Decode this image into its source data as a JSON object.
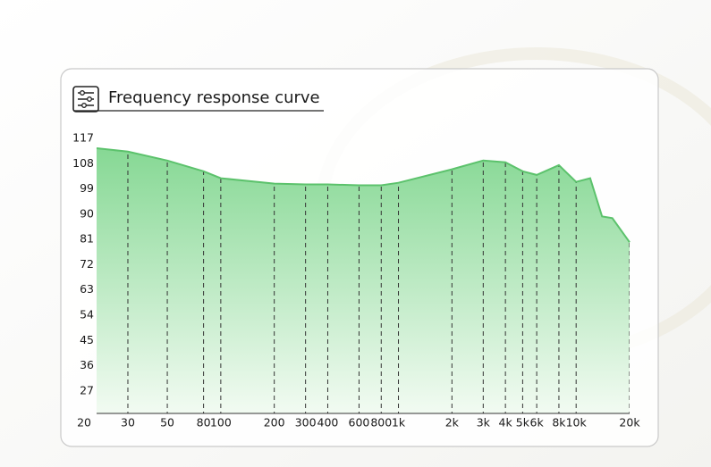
{
  "chart_data": {
    "type": "area",
    "title": "Frequency response curve",
    "x": [
      20,
      30,
      50,
      80,
      100,
      200,
      300,
      400,
      600,
      800,
      1000,
      2000,
      3000,
      4000,
      5000,
      6000,
      8000,
      10000,
      12000,
      14000,
      16000,
      20000
    ],
    "values": [
      113.5,
      112.3,
      109.1,
      105.3,
      102.8,
      100.9,
      100.6,
      100.6,
      100.3,
      100.3,
      101.2,
      106,
      109.1,
      108.5,
      105.3,
      104,
      107.5,
      101.5,
      102.8,
      89.2,
      88.6,
      80
    ],
    "color": "#5cc26c",
    "xscale": "log",
    "xlim": [
      20,
      20000
    ],
    "xticks": [
      20,
      30,
      50,
      80,
      100,
      200,
      300,
      400,
      600,
      800,
      {
        "value": 1000,
        "label": "1k"
      },
      {
        "value": 2000,
        "label": "2k"
      },
      {
        "value": 3000,
        "label": "3k"
      },
      {
        "value": 4000,
        "label": "4k"
      },
      {
        "value": 5000,
        "label": "5k"
      },
      {
        "value": 6000,
        "label": "6k"
      },
      {
        "value": 8000,
        "label": "8k"
      },
      {
        "value": 10000,
        "label": "10k"
      },
      {
        "value": 20000,
        "label": "20k"
      }
    ],
    "ylim": [
      19,
      117
    ],
    "yticks": [
      27,
      36,
      45,
      54,
      63,
      72,
      81,
      90,
      99,
      108,
      117
    ]
  }
}
